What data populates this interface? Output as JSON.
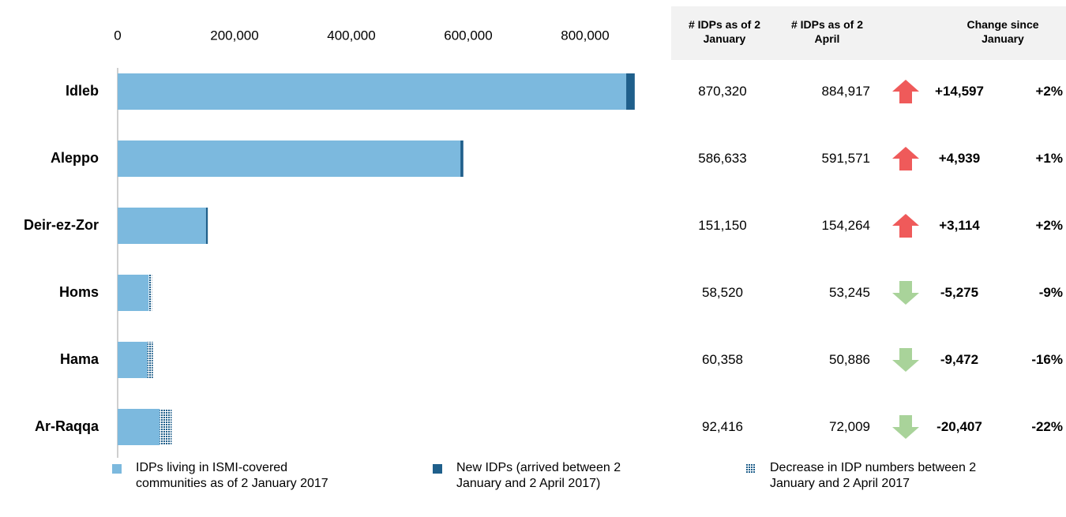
{
  "chart_data": {
    "type": "stacked-bar-horizontal",
    "categories": [
      "Idleb",
      "Aleppo",
      "Deir-ez-Zor",
      "Homs",
      "Hama",
      "Ar-Raqqa"
    ],
    "series": [
      {
        "name": "IDPs living in ISMI-covered communities as of 2 January 2017",
        "color": "#7cb9de",
        "values": [
          870320,
          586633,
          151150,
          53245,
          50886,
          72009
        ]
      },
      {
        "name": "New IDPs (arrived between 2 January and 2 April 2017)",
        "color": "#1f5f8b",
        "values": [
          14597,
          4939,
          3114,
          null,
          null,
          null
        ]
      },
      {
        "name": "Decrease in IDP numbers between 2 January and 2 April 2017",
        "color": "#1f5f8b",
        "hatch": true,
        "values": [
          null,
          null,
          null,
          5275,
          9472,
          20407
        ]
      }
    ],
    "xlim": [
      0,
      900000
    ],
    "xticks": [
      0,
      {
        "value": 200000,
        "label": "200,000"
      },
      {
        "value": 400000,
        "label": "400,000"
      },
      {
        "value": 600000,
        "label": "600,000"
      },
      {
        "value": 800000,
        "label": "800,000"
      }
    ]
  },
  "table": {
    "headers": [
      "# IDPs as of 2 January",
      "# IDPs as of 2 April",
      "Change since January"
    ],
    "rows": [
      [
        "870,320",
        "884,917",
        "+14,597",
        "+2%"
      ],
      [
        "586,633",
        "591,571",
        "+4,939",
        "+1%"
      ],
      [
        "151,150",
        "154,264",
        "+3,114",
        "+2%"
      ],
      [
        "58,520",
        "53,245",
        "-5,275",
        "-9%"
      ],
      [
        "60,358",
        "50,886",
        "-9,472",
        "-16%"
      ],
      [
        "92,416",
        "72,009",
        "-20,407",
        "-22%"
      ]
    ]
  }
}
